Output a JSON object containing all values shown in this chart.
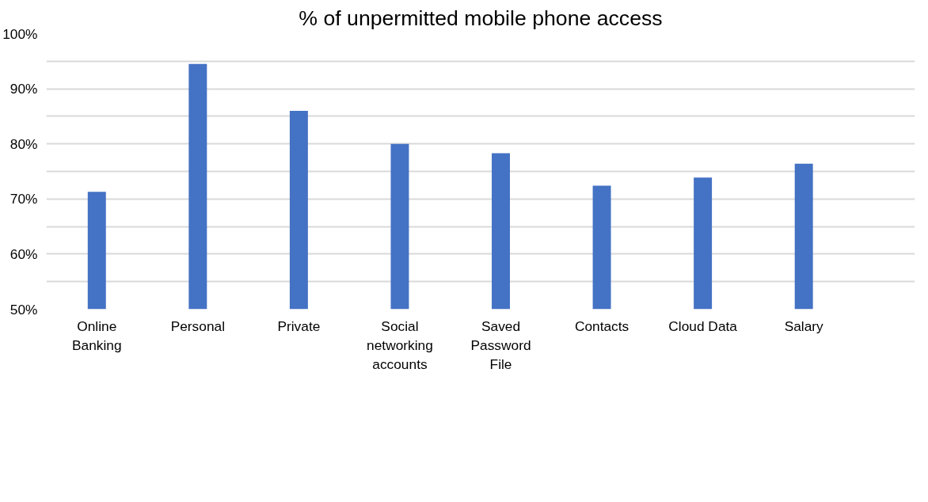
{
  "chart_data": {
    "type": "bar",
    "title": "% of unpermitted mobile phone access",
    "categories": [
      "Online\nBanking",
      "Personal",
      "Private",
      "Social\nnetworking\naccounts",
      "Saved\nPassword\nFile",
      "Contacts",
      "Cloud Data",
      "Salary"
    ],
    "values": [
      71.3,
      94.5,
      86.0,
      80.0,
      78.3,
      72.4,
      73.9,
      76.4
    ],
    "color": "#4472c4",
    "ylim": [
      50,
      100
    ],
    "yticks": [
      {
        "value": 50,
        "label": "50%"
      },
      {
        "value": 55,
        "label": null
      },
      {
        "value": 60,
        "label": "60%"
      },
      {
        "value": 65,
        "label": null
      },
      {
        "value": 70,
        "label": "70%"
      },
      {
        "value": 75,
        "label": null
      },
      {
        "value": 80,
        "label": "80%"
      },
      {
        "value": 85,
        "label": null
      },
      {
        "value": 90,
        "label": "90%"
      },
      {
        "value": 95,
        "label": null
      },
      {
        "value": 100,
        "label": "100%"
      }
    ],
    "grid": "y"
  }
}
